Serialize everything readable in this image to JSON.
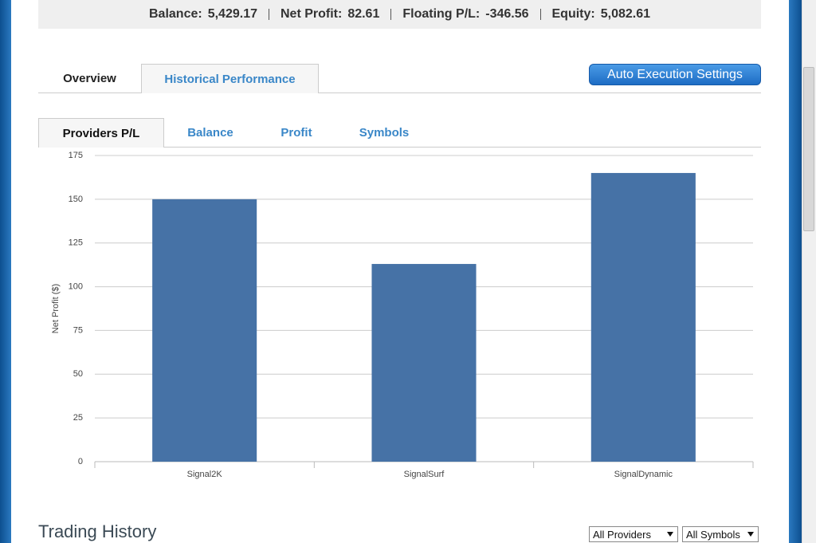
{
  "header": {
    "stats": [
      {
        "label": "Balance:",
        "value": "5,429.17"
      },
      {
        "label": "Net Profit:",
        "value": "82.61"
      },
      {
        "label": "Floating P/L:",
        "value": "-346.56"
      },
      {
        "label": "Equity:",
        "value": "5,082.61"
      }
    ]
  },
  "tabs": {
    "items": [
      "Overview",
      "Historical Performance"
    ],
    "active": 1
  },
  "button": "Auto Execution Settings",
  "subtabs": {
    "items": [
      "Providers P/L",
      "Balance",
      "Profit",
      "Symbols"
    ],
    "active": 0
  },
  "chart_data": {
    "type": "bar",
    "ylabel": "Net Profit ($)",
    "categories": [
      "Signal2K",
      "SignalSurf",
      "SignalDynamic"
    ],
    "values": [
      150,
      113,
      165
    ],
    "color": "#4672a6",
    "ylim": [
      0,
      175
    ],
    "yticks": [
      0,
      25,
      50,
      75,
      100,
      125,
      150,
      175
    ],
    "grid": true
  },
  "trading_history": {
    "title": "Trading History",
    "filters": [
      "All Providers",
      "All Symbols"
    ]
  }
}
